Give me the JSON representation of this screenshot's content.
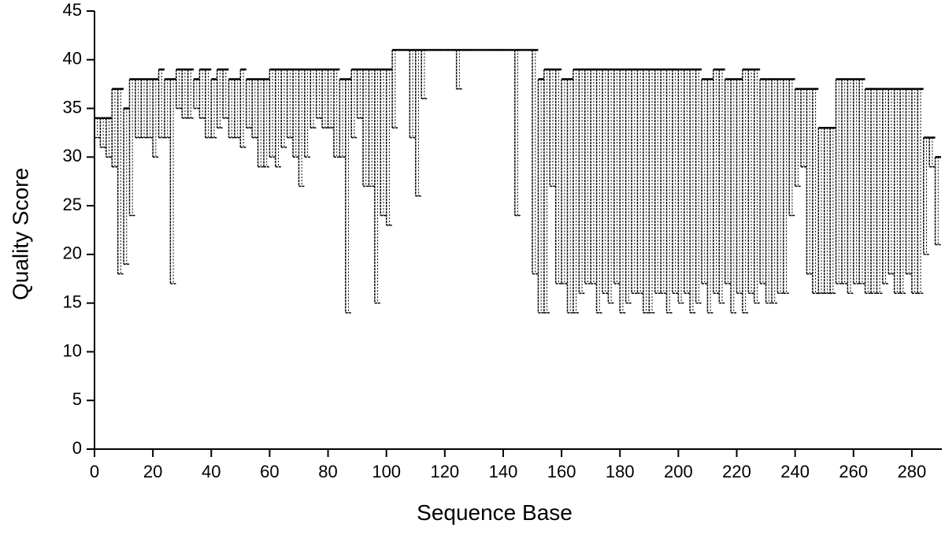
{
  "chart_data": {
    "type": "range-step",
    "x_label": "Sequence Base",
    "y_label": "Quality Score",
    "xlim": [
      0,
      290
    ],
    "ylim": [
      0,
      45
    ],
    "xticks": [
      0,
      20,
      40,
      60,
      80,
      100,
      120,
      140,
      160,
      180,
      200,
      220,
      240,
      260,
      280
    ],
    "yticks": [
      0,
      5,
      10,
      15,
      20,
      25,
      30,
      35,
      40,
      45
    ],
    "grid": false,
    "x": [
      0,
      2,
      4,
      6,
      8,
      10,
      12,
      14,
      16,
      18,
      20,
      22,
      24,
      26,
      28,
      30,
      32,
      34,
      36,
      38,
      40,
      42,
      44,
      46,
      48,
      50,
      52,
      54,
      56,
      58,
      60,
      62,
      64,
      66,
      68,
      70,
      72,
      74,
      76,
      78,
      80,
      82,
      84,
      86,
      88,
      90,
      92,
      94,
      96,
      98,
      100,
      102,
      104,
      106,
      108,
      110,
      112,
      114,
      116,
      118,
      120,
      122,
      124,
      126,
      128,
      130,
      132,
      134,
      136,
      138,
      140,
      142,
      144,
      146,
      148,
      150,
      152,
      154,
      156,
      158,
      160,
      162,
      164,
      166,
      168,
      170,
      172,
      174,
      176,
      178,
      180,
      182,
      184,
      186,
      188,
      190,
      192,
      194,
      196,
      198,
      200,
      202,
      204,
      206,
      208,
      210,
      212,
      214,
      216,
      218,
      220,
      222,
      224,
      226,
      228,
      230,
      232,
      234,
      236,
      238,
      240,
      242,
      244,
      246,
      248,
      250,
      252,
      254,
      256,
      258,
      260,
      262,
      264,
      266,
      268,
      270,
      272,
      274,
      276,
      278,
      280,
      282,
      284,
      286,
      288
    ],
    "series": [
      {
        "color": "#000000",
        "values": [
          34,
          34,
          34,
          37,
          37,
          35,
          38,
          38,
          38,
          38,
          38,
          39,
          38,
          38,
          39,
          39,
          39,
          38,
          39,
          39,
          38,
          39,
          39,
          38,
          38,
          39,
          38,
          38,
          38,
          38,
          39,
          39,
          39,
          39,
          39,
          39,
          39,
          39,
          39,
          39,
          39,
          39,
          38,
          38,
          39,
          39,
          39,
          39,
          39,
          39,
          39,
          41,
          41,
          41,
          41,
          41,
          41,
          41,
          41,
          41,
          41,
          41,
          41,
          41,
          41,
          41,
          41,
          41,
          41,
          41,
          41,
          41,
          41,
          41,
          41,
          41,
          38,
          39,
          39,
          39,
          38,
          38,
          39,
          39,
          39,
          39,
          39,
          39,
          39,
          39,
          39,
          39,
          39,
          39,
          39,
          39,
          39,
          39,
          39,
          39,
          39,
          39,
          39,
          39,
          38,
          38,
          39,
          39,
          38,
          38,
          38,
          39,
          39,
          39,
          38,
          38,
          38,
          38,
          38,
          38,
          37,
          37,
          37,
          37,
          33,
          33,
          33,
          38,
          38,
          38,
          38,
          38,
          37,
          37,
          37,
          37,
          37,
          37,
          37,
          37,
          37,
          37,
          32,
          32,
          30
        ]
      },
      {
        "color": "#000000",
        "values": [
          32,
          31,
          30,
          29,
          18,
          19,
          24,
          32,
          32,
          32,
          30,
          32,
          32,
          17,
          35,
          34,
          34,
          35,
          34,
          32,
          32,
          33,
          34,
          32,
          32,
          31,
          33,
          32,
          29,
          29,
          30,
          29,
          31,
          32,
          30,
          27,
          30,
          33,
          34,
          33,
          33,
          30,
          30,
          14,
          32,
          34,
          27,
          27,
          15,
          24,
          23,
          33,
          41,
          41,
          32,
          26,
          36,
          41,
          41,
          41,
          41,
          41,
          37,
          41,
          41,
          41,
          41,
          41,
          41,
          41,
          41,
          41,
          24,
          41,
          41,
          18,
          14,
          14,
          27,
          17,
          17,
          14,
          14,
          16,
          17,
          17,
          14,
          16,
          15,
          17,
          14,
          15,
          16,
          16,
          14,
          14,
          16,
          16,
          14,
          16,
          15,
          16,
          14,
          15,
          17,
          14,
          16,
          15,
          17,
          14,
          16,
          14,
          16,
          15,
          17,
          15,
          15,
          16,
          16,
          24,
          27,
          29,
          18,
          16,
          16,
          16,
          16,
          17,
          17,
          16,
          17,
          17,
          16,
          16,
          16,
          17,
          18,
          16,
          16,
          18,
          16,
          16,
          20,
          29,
          21
        ]
      }
    ]
  }
}
